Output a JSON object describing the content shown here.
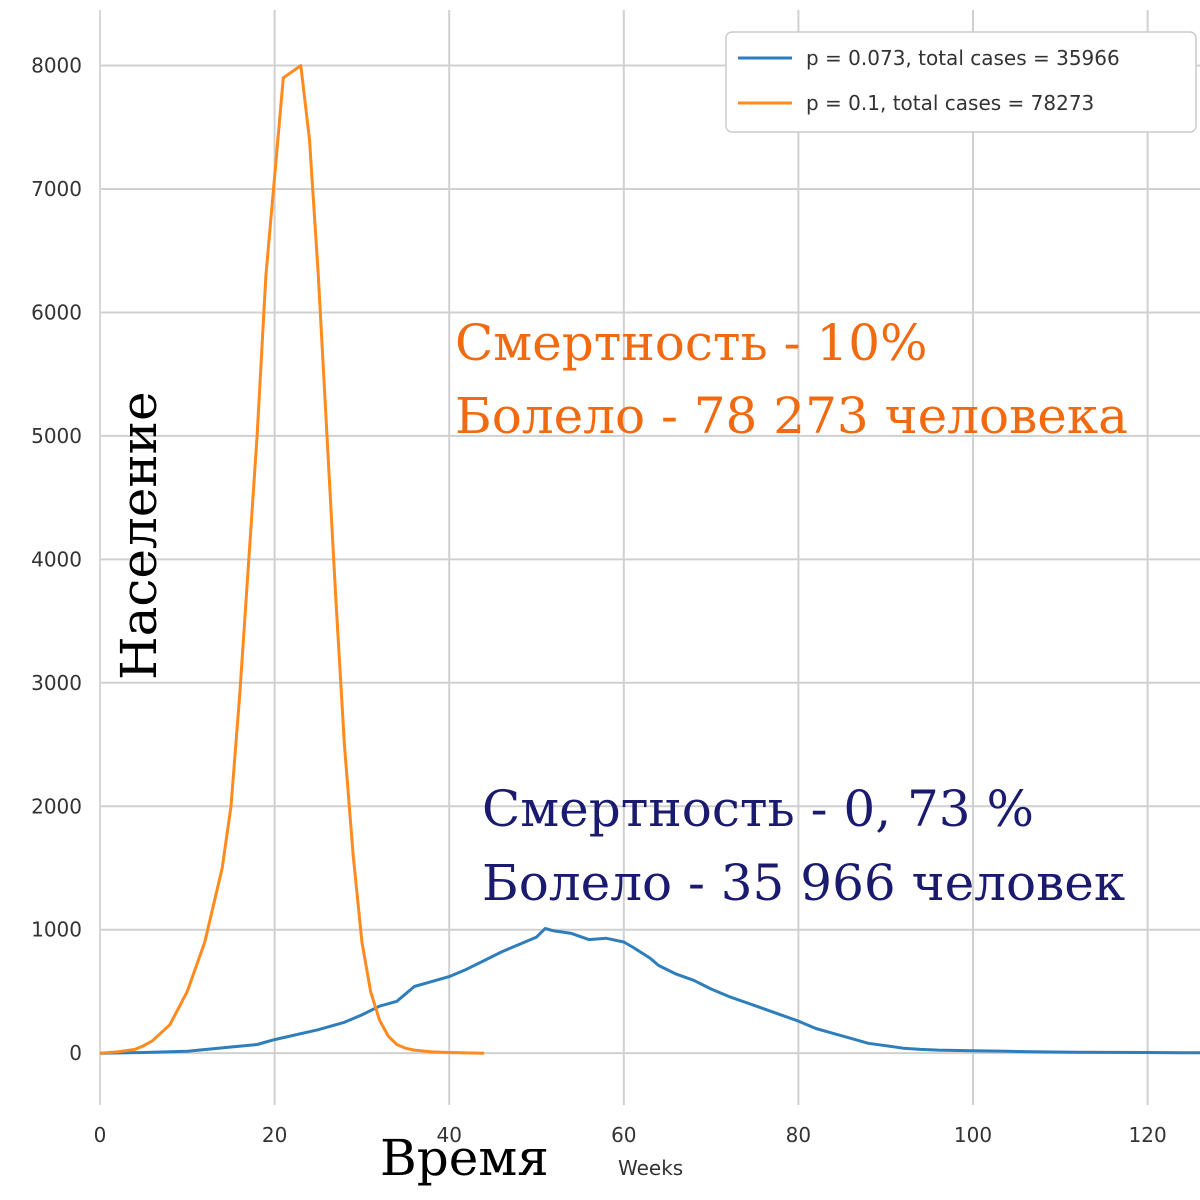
{
  "colors": {
    "series_blue": "#2f7ebc",
    "series_orange": "#ff8a1e",
    "annotation_orange": "#f26a10",
    "annotation_navy": "#1a1a6e",
    "grid": "#d0d0d0"
  },
  "chart_data": {
    "type": "line",
    "title": "",
    "xlabel": "Weeks",
    "ylabel": "",
    "xlim": [
      0,
      126
    ],
    "ylim": [
      -420,
      8450
    ],
    "xticks": [
      0,
      20,
      40,
      60,
      80,
      100,
      120
    ],
    "yticks": [
      0,
      1000,
      2000,
      3000,
      4000,
      5000,
      6000,
      7000,
      8000
    ],
    "grid": true,
    "legend_position": "top-right",
    "series": [
      {
        "name": "p = 0.073, total cases = 35966",
        "legend_label": "p = 0.073, total cases = 35966",
        "color": "#2f7ebc",
        "x": [
          0,
          5,
          10,
          15,
          18,
          20,
          25,
          28,
          30,
          32,
          34,
          36,
          38,
          40,
          42,
          44,
          46,
          48,
          50,
          51,
          52,
          54,
          56,
          58,
          60,
          61,
          63,
          64,
          66,
          68,
          70,
          72,
          74,
          76,
          78,
          80,
          82,
          84,
          86,
          88,
          90,
          92,
          94,
          96,
          100,
          104,
          108,
          112,
          116,
          120,
          124,
          126
        ],
        "values": [
          0,
          5,
          15,
          50,
          70,
          110,
          190,
          250,
          310,
          380,
          420,
          540,
          580,
          620,
          680,
          750,
          820,
          880,
          940,
          1010,
          990,
          970,
          920,
          930,
          900,
          860,
          770,
          710,
          640,
          590,
          520,
          460,
          410,
          360,
          310,
          260,
          200,
          160,
          120,
          80,
          60,
          40,
          30,
          25,
          20,
          15,
          10,
          8,
          6,
          5,
          4,
          3
        ]
      },
      {
        "name": "p = 0.1, total cases = 78273",
        "legend_label": "p = 0.1, total cases = 78273",
        "color": "#ff8a1e",
        "x": [
          0,
          2,
          4,
          5,
          6,
          8,
          10,
          12,
          14,
          15,
          16,
          18,
          19,
          20,
          21,
          22,
          23,
          24,
          25,
          26,
          27,
          28,
          29,
          30,
          31,
          32,
          33,
          34,
          35,
          36,
          38,
          40,
          42,
          44
        ],
        "values": [
          0,
          10,
          30,
          60,
          100,
          230,
          500,
          900,
          1500,
          2000,
          2900,
          5000,
          6300,
          7100,
          7900,
          7950,
          8000,
          7400,
          6300,
          5000,
          3700,
          2500,
          1600,
          900,
          500,
          270,
          140,
          70,
          40,
          25,
          10,
          5,
          2,
          0
        ]
      }
    ],
    "annotations": {
      "orange_line1": "Смертность - 10%",
      "orange_line2": "Болело - 78 273 человека",
      "navy_line1": "Смертность - 0, 73 %",
      "navy_line2": "Болело - 35 966 человек"
    },
    "overlay_labels": {
      "y_axis": "Население",
      "x_axis": "Время"
    }
  }
}
